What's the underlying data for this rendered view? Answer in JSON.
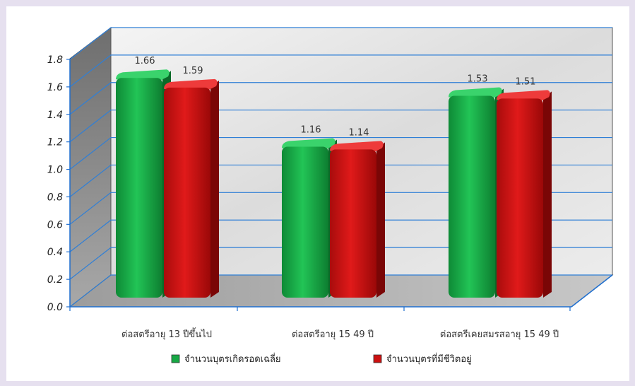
{
  "chart_data": {
    "type": "bar",
    "title": "",
    "xlabel": "",
    "ylabel": "",
    "ylim": [
      0,
      1.8
    ],
    "yticks": [
      "0.0",
      "0.2",
      "0.4",
      "0.6",
      "0.8",
      "1.0",
      "1.2",
      "1.4",
      "1.6",
      "1.8"
    ],
    "grid": true,
    "style": "3d-clustered",
    "legend_position": "bottom",
    "categories": [
      "ต่อสตรีอายุ 13 ปีขึ้นไป",
      "ต่อสตรีอายุ 15 49 ปี",
      "ต่อสตรีเคยสมรสอายุ 15 49 ปี"
    ],
    "series": [
      {
        "name": "จำนวนบุตรเกิดรอดเฉลี่ย",
        "color": "#17a845",
        "values": [
          1.66,
          1.16,
          1.53
        ]
      },
      {
        "name": "จำนวนบุตรที่มีชีวิตอยู่",
        "color": "#cc1010",
        "values": [
          1.59,
          1.14,
          1.51
        ]
      }
    ],
    "data_labels": [
      [
        "1.66",
        "1.16",
        "1.53"
      ],
      [
        "1.59",
        "1.14",
        "1.51"
      ]
    ]
  },
  "colors": {
    "gridline": "#2f7fd6",
    "wall_fill": "#e8e8e8",
    "side_wall_fill": "#8d8d8d",
    "floor_fill": "#b9b9b9",
    "axis": "#1f6fcf"
  }
}
